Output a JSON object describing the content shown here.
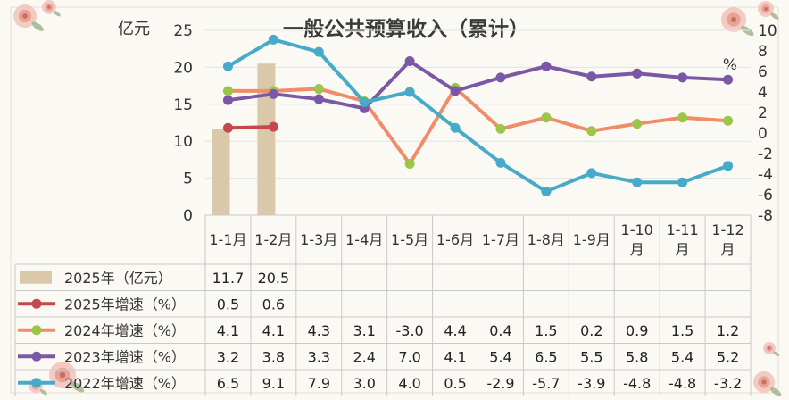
{
  "chart_data": {
    "type": "bar",
    "title": "一般公共预算收入（累计）",
    "left_unit": "亿元",
    "right_unit": "%",
    "categories": [
      "1-1月",
      "1-2月",
      "1-3月",
      "1-4月",
      "1-5月",
      "1-6月",
      "1-7月",
      "1-8月",
      "1-9月",
      "1-10月",
      "1-11月",
      "1-12月"
    ],
    "left_axis": {
      "min": 0,
      "max": 25,
      "ticks": [
        0,
        5,
        10,
        15,
        20,
        25
      ]
    },
    "right_axis": {
      "min": -8,
      "max": 10,
      "ticks": [
        -8,
        -6,
        -4,
        -2,
        0,
        2,
        4,
        6,
        8,
        10
      ]
    },
    "series": [
      {
        "name": "2025年（亿元）",
        "kind": "bar",
        "axis": "left",
        "color": "#d9c8a9",
        "values": [
          11.7,
          20.5,
          null,
          null,
          null,
          null,
          null,
          null,
          null,
          null,
          null,
          null
        ]
      },
      {
        "name": "2025年增速（%）",
        "kind": "line",
        "axis": "right",
        "color": "#c8474a",
        "values": [
          0.5,
          0.6,
          null,
          null,
          null,
          null,
          null,
          null,
          null,
          null,
          null,
          null
        ]
      },
      {
        "name": "2024年增速（%）",
        "kind": "line",
        "axis": "right",
        "color": "#f08c6a",
        "marker": "#9cc64a",
        "values": [
          4.1,
          4.1,
          4.3,
          3.1,
          -3.0,
          4.4,
          0.4,
          1.5,
          0.2,
          0.9,
          1.5,
          1.2
        ]
      },
      {
        "name": "2023年增速（%）",
        "kind": "line",
        "axis": "right",
        "color": "#7b58a6",
        "values": [
          3.2,
          3.8,
          3.3,
          2.4,
          7.0,
          4.1,
          5.4,
          6.5,
          5.5,
          5.8,
          5.4,
          5.2
        ]
      },
      {
        "name": "2022年增速（%）",
        "kind": "line",
        "axis": "right",
        "color": "#46abc8",
        "values": [
          6.5,
          9.1,
          7.9,
          3.0,
          4.0,
          0.5,
          -2.9,
          -5.7,
          -3.9,
          -4.8,
          -4.8,
          -3.2
        ]
      }
    ],
    "table_rows": [
      {
        "values": [
          "11.7",
          "20.5",
          "",
          "",
          "",
          "",
          "",
          "",
          "",
          "",
          "",
          ""
        ]
      },
      {
        "values": [
          "0.5",
          "0.6",
          "",
          "",
          "",
          "",
          "",
          "",
          "",
          "",
          "",
          ""
        ]
      },
      {
        "values": [
          "4.1",
          "4.1",
          "4.3",
          "3.1",
          "-3.0",
          "4.4",
          "0.4",
          "1.5",
          "0.2",
          "0.9",
          "1.5",
          "1.2"
        ]
      },
      {
        "values": [
          "3.2",
          "3.8",
          "3.3",
          "2.4",
          "7.0",
          "4.1",
          "5.4",
          "6.5",
          "5.5",
          "5.8",
          "5.4",
          "5.2"
        ]
      },
      {
        "values": [
          "6.5",
          "9.1",
          "7.9",
          "3.0",
          "4.0",
          "0.5",
          "-2.9",
          "-5.7",
          "-3.9",
          "-4.8",
          "-4.8",
          "-3.2"
        ]
      }
    ]
  }
}
